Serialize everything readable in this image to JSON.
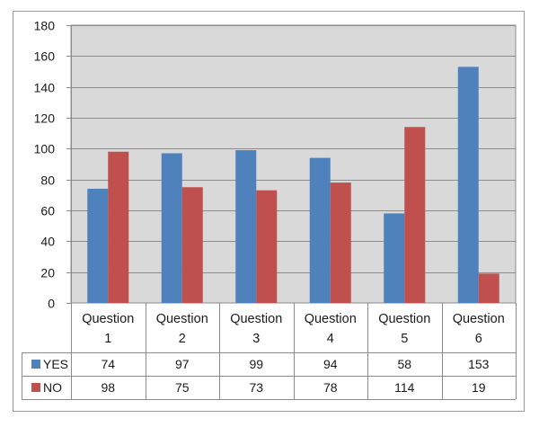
{
  "chart_data": {
    "type": "bar",
    "categories": [
      [
        "Question",
        "1"
      ],
      [
        "Question",
        "2"
      ],
      [
        "Question",
        "3"
      ],
      [
        "Question",
        "4"
      ],
      [
        "Question",
        "5"
      ],
      [
        "Question",
        "6"
      ]
    ],
    "series": [
      {
        "name": "YES",
        "color": "#4F81BD",
        "values": [
          74,
          97,
          99,
          94,
          58,
          153
        ]
      },
      {
        "name": "NO",
        "color": "#C0504D",
        "values": [
          98,
          75,
          73,
          78,
          114,
          19
        ]
      }
    ],
    "ylim": [
      0,
      180
    ],
    "yticks": [
      0,
      20,
      40,
      60,
      80,
      100,
      120,
      140,
      160,
      180
    ],
    "grid": true,
    "plot_background": "#D9D9D9",
    "data_table": true,
    "legend_in_table": true
  }
}
